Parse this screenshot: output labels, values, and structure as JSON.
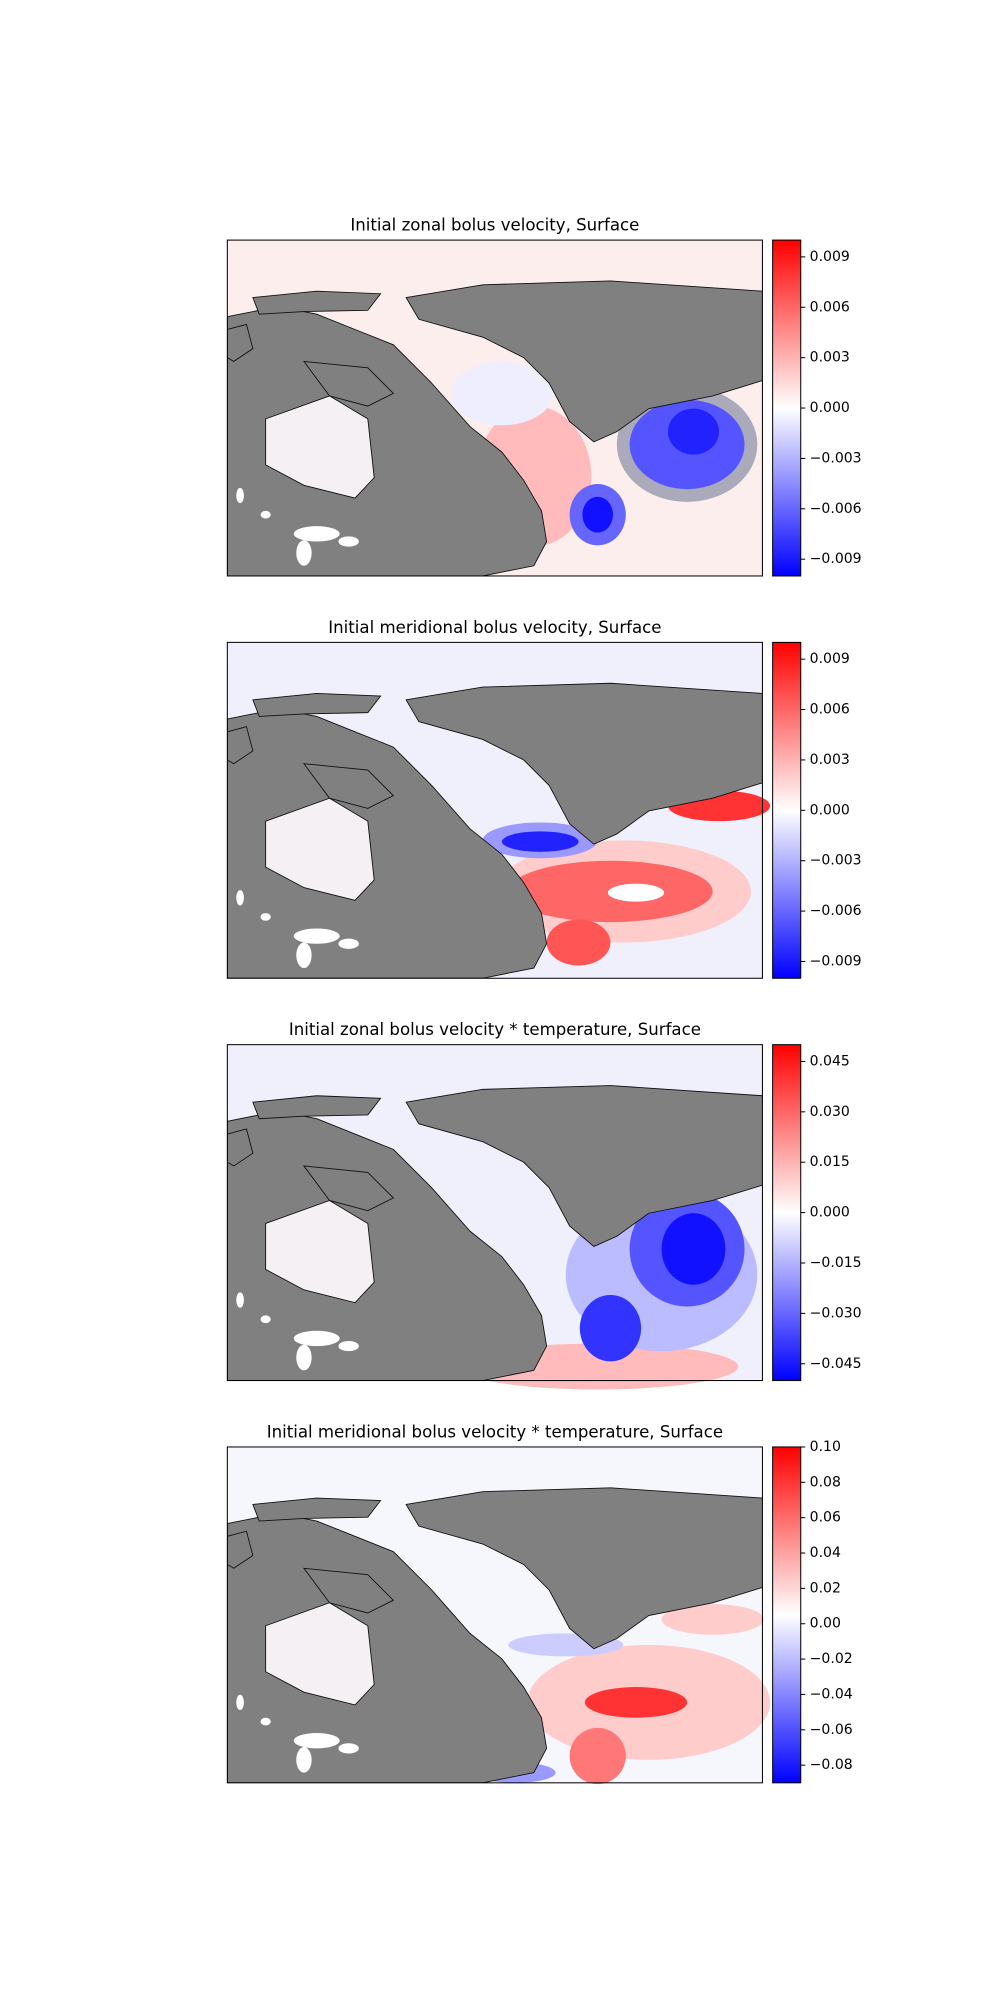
{
  "chart_data": [
    {
      "type": "contour",
      "title": "Initial zonal bolus velocity, Surface",
      "colorbar_lim": [
        -0.01,
        0.01
      ],
      "colorbar_ticks": [
        0.009,
        0.006,
        0.003,
        {
          "value": 0,
          "label": "0.000"
        },
        {
          "value": -0.003,
          "label": "−0.003"
        },
        {
          "value": -0.006,
          "label": "−0.006"
        },
        {
          "value": -0.009,
          "label": "−0.009"
        }
      ]
    },
    {
      "type": "contour",
      "title": "Initial meridional bolus velocity, Surface",
      "colorbar_lim": [
        -0.01,
        0.01
      ],
      "colorbar_ticks": [
        0.009,
        0.006,
        0.003,
        {
          "value": 0,
          "label": "0.000"
        },
        {
          "value": -0.003,
          "label": "−0.003"
        },
        {
          "value": -0.006,
          "label": "−0.006"
        },
        {
          "value": -0.009,
          "label": "−0.009"
        }
      ]
    },
    {
      "type": "contour",
      "title": "Initial zonal bolus velocity * temperature, Surface",
      "colorbar_lim": [
        -0.05,
        0.05
      ],
      "colorbar_ticks": [
        0.045,
        {
          "value": 0.03,
          "label": "0.030"
        },
        0.015,
        {
          "value": 0,
          "label": "0.000"
        },
        {
          "value": -0.015,
          "label": "−0.015"
        },
        {
          "value": -0.03,
          "label": "−0.030"
        },
        {
          "value": -0.045,
          "label": "−0.045"
        }
      ]
    },
    {
      "type": "contour",
      "title": "Initial meridional bolus velocity * temperature, Surface",
      "colorbar_lim": [
        -0.09,
        0.1
      ],
      "colorbar_ticks": [
        {
          "value": 0.1,
          "label": "0.10"
        },
        0.08,
        0.06,
        0.04,
        0.02,
        {
          "value": 0,
          "label": "0.00"
        },
        {
          "value": -0.02,
          "label": "−0.02"
        },
        {
          "value": -0.04,
          "label": "−0.04"
        },
        {
          "value": -0.06,
          "label": "−0.06"
        },
        {
          "value": -0.08,
          "label": "−0.08"
        }
      ]
    }
  ]
}
